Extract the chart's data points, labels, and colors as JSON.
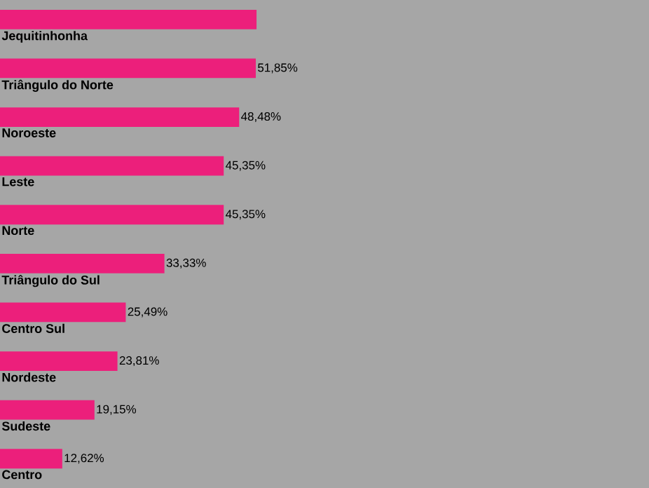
{
  "chart_data": {
    "type": "bar",
    "orientation": "horizontal",
    "categories": [
      "Jequitinhonha",
      "Triângulo do Norte",
      "Noroeste",
      "Leste",
      "Norte",
      "Triângulo do Sul",
      "Centro Sul",
      "Nordeste",
      "Sudeste",
      "Centro"
    ],
    "values": [
      52,
      51.85,
      48.48,
      45.35,
      45.35,
      33.33,
      25.49,
      23.81,
      19.15,
      12.62
    ],
    "value_labels": [
      null,
      "51,85%",
      "48,48%",
      "45,35%",
      "45,35%",
      "33,33%",
      "25,49%",
      "23,81%",
      "19,15%",
      "12,62%"
    ],
    "color": "#ec1f7b"
  }
}
